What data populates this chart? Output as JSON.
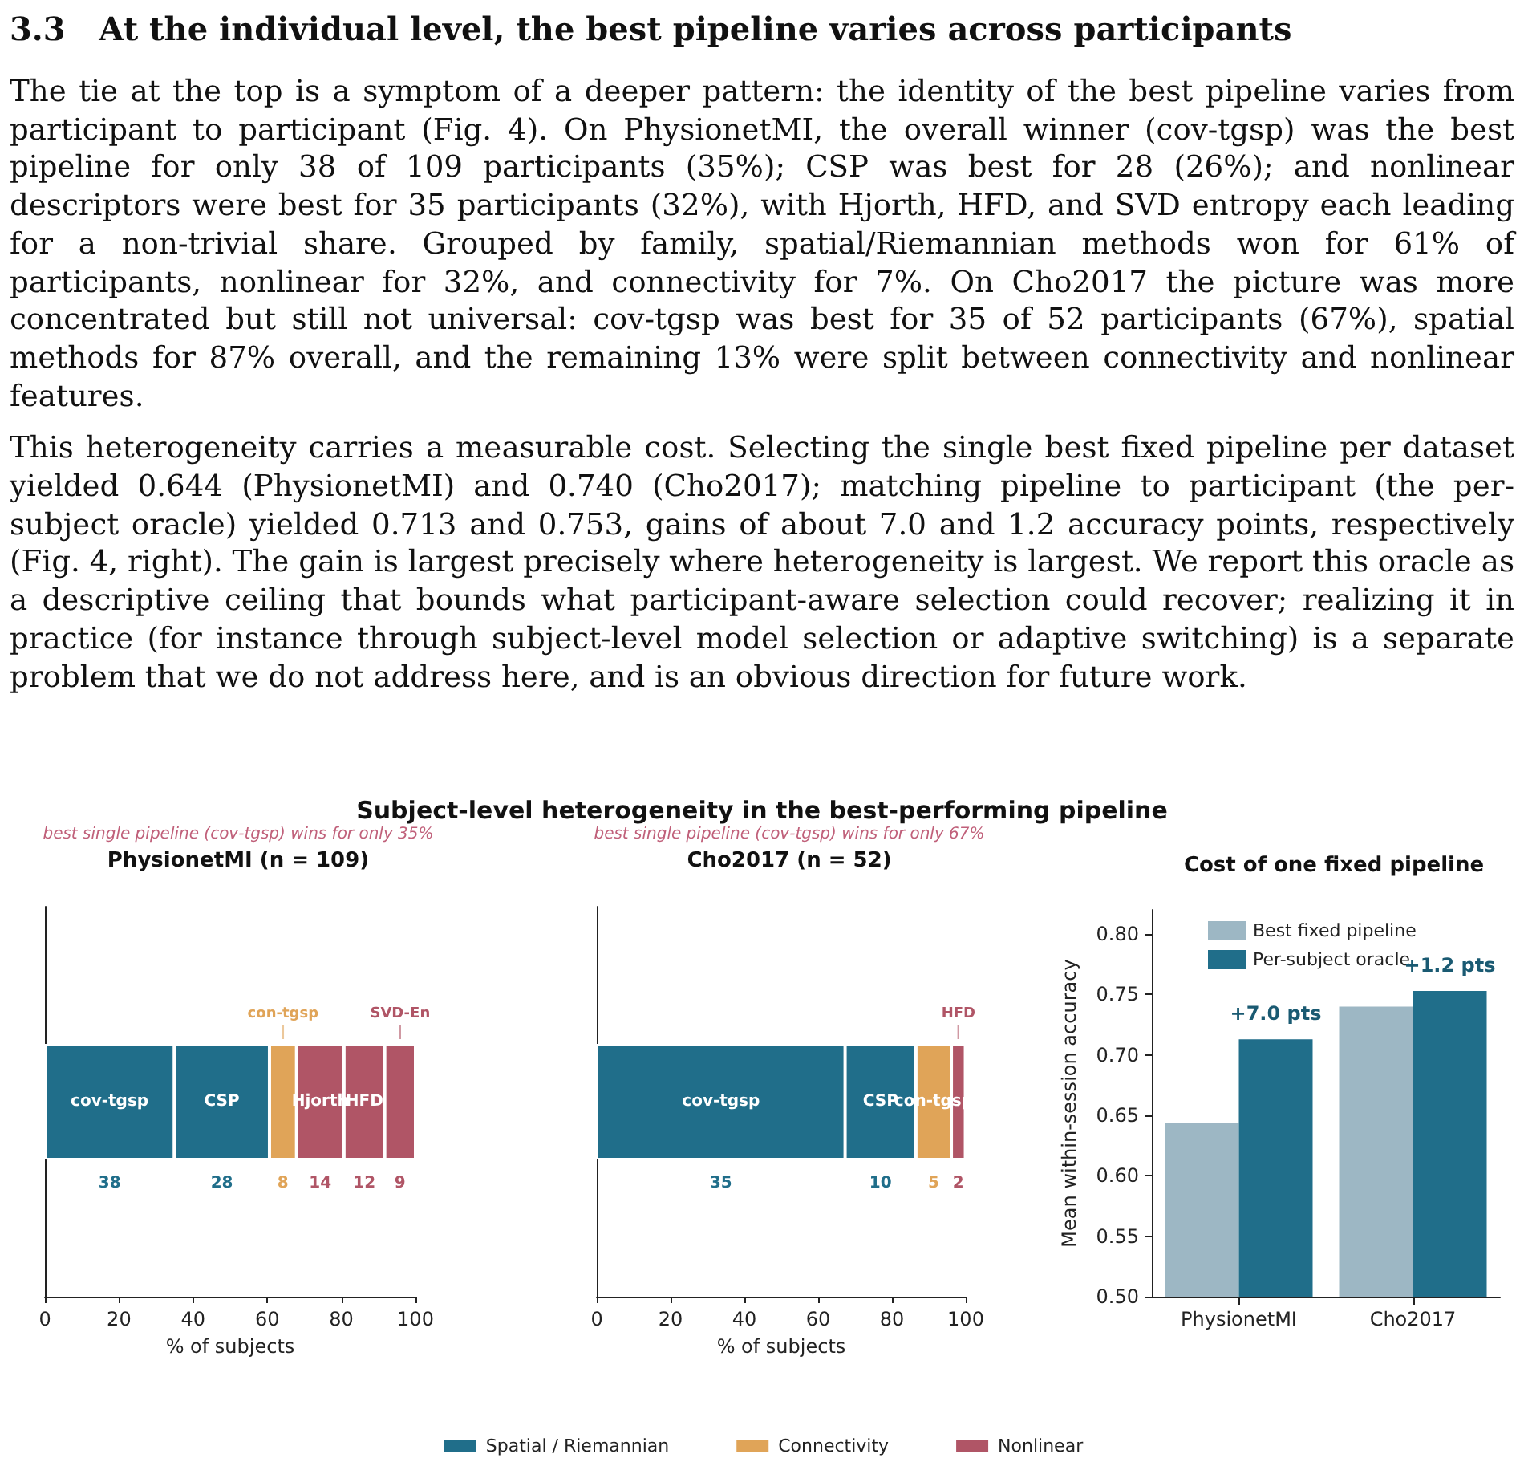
{
  "chart_data": [
    {
      "type": "other",
      "title": "3.3   At the individual level, the best pipeline varies across participants",
      "annotations": [
        "The tie at the top is a symptom of a deeper pattern: the identity of the best pipeline varies from participant to participant (Fig. 4). On PhysionetMI, the overall winner (cov-tgsp) was the best pipeline for only 38 of 109 participants (35%); CSP was best for 28 (26%); and nonlinear descriptors were best for 35 participants (32%), with Hjorth, HFD, and SVD entropy each leading for a non-trivial share. Grouped by family, spatial/Riemannian methods won for 61% of participants, nonlinear for 32%, and connectivity for 7%. On Cho2017 the picture was more concentrated but still not universal: cov-tgsp was best for 35 of 52 participants (67%), spatial methods for 87% overall, and the remaining 13% were split between connectivity and nonlinear features.",
        "This heterogeneity carries a measurable cost. Selecting the single best fixed pipeline per dataset yielded 0.644 (PhysionetMI) and 0.740 (Cho2017); matching pipeline to participant (the per-subject oracle) yielded 0.713 and 0.753, gains of about 7.0 and 1.2 accuracy points, respectively (Fig. 4, right). The gain is largest precisely where heterogeneity is largest. We report this oracle as a descriptive ceiling that bounds what participant-aware selection could recover; realizing it in practice (for instance through subject-level model selection or adaptive switching) is a separate problem that we do not address here, and is an obvious direction for future work.",
        "Subject-level heterogeneity in the best-performing pipeline"
      ]
    },
    {
      "type": "bar",
      "title": "PhysionetMI (n = 109)",
      "subtitle": "best single pipeline (cov-tgsp) wins for only 35%",
      "xlabel": "% of subjects",
      "orientation": "horizontal",
      "stacked": true,
      "categories": [
        null
      ],
      "xlim": [
        0,
        100
      ],
      "xticks": [
        0,
        20,
        40,
        60,
        80,
        100
      ],
      "tick_labels": "x",
      "series": [
        {
          "name": "cov-tgsp",
          "color": "#206e8a",
          "values": [
            34.9
          ]
        },
        {
          "name": "CSP",
          "color": "#206e8a",
          "values": [
            25.7
          ]
        },
        {
          "name": "con-tgsp",
          "color": "#e0a458",
          "values": [
            7.3
          ]
        },
        {
          "name": "Hjorth",
          "color": "#b05566",
          "values": [
            12.8
          ]
        },
        {
          "name": "HFD",
          "color": "#b05566",
          "values": [
            11.0
          ]
        },
        {
          "name": "SVD-En",
          "color": "#b05566",
          "values": [
            8.3
          ]
        }
      ],
      "annotations": [
        "38",
        "28",
        "8",
        "14",
        "12",
        "9"
      ]
    },
    {
      "type": "bar",
      "title": "Cho2017 (n = 52)",
      "subtitle": "best single pipeline (cov-tgsp) wins for only 67%",
      "xlabel": "% of subjects",
      "orientation": "horizontal",
      "stacked": true,
      "categories": [
        null
      ],
      "xlim": [
        0,
        100
      ],
      "xticks": [
        0,
        20,
        40,
        60,
        80,
        100
      ],
      "tick_labels": "x",
      "legend": "bottom",
      "series": [
        {
          "name": "cov-tgsp",
          "color": "#206e8a",
          "values": [
            67.3
          ]
        },
        {
          "name": "CSP",
          "color": "#206e8a",
          "values": [
            19.2
          ]
        },
        {
          "name": "con-tgsp",
          "color": "#e0a458",
          "values": [
            9.6
          ]
        },
        {
          "name": "HFD",
          "color": "#b05566",
          "values": [
            3.8
          ]
        },
        {
          "name": "Spatial / Riemannian",
          "color": "#206e8a",
          "values": [
            null
          ]
        },
        {
          "name": "Connectivity",
          "color": "#e0a458",
          "values": [
            null
          ]
        },
        {
          "name": "Nonlinear",
          "color": "#b05566",
          "values": [
            null
          ]
        }
      ],
      "annotations": [
        "35",
        "10",
        "5",
        "2"
      ]
    },
    {
      "type": "bar",
      "title": "Cost of one fixed pipeline",
      "ylabel": "Mean within-session accuracy",
      "categories": [
        "PhysionetMI",
        "Cho2017"
      ],
      "ylim": [
        0.5,
        0.82
      ],
      "yticks": [
        {
          "value": 0.5,
          "label": "0.50"
        },
        {
          "value": 0.55,
          "label": "0.55"
        },
        {
          "value": 0.6,
          "label": "0.60"
        },
        {
          "value": 0.65,
          "label": "0.65"
        },
        {
          "value": 0.7,
          "label": "0.70"
        },
        {
          "value": 0.75,
          "label": "0.75"
        },
        {
          "value": 0.8,
          "label": "0.80"
        }
      ],
      "legend": "top",
      "series": [
        {
          "name": "Best fixed pipeline",
          "color": "#9db7c4",
          "values": [
            0.644,
            0.74
          ]
        },
        {
          "name": "Per-subject oracle",
          "color": "#206e8a",
          "values": [
            0.713,
            0.753
          ]
        }
      ],
      "annotations": [
        "+7.0 pts",
        "+1.2 pts"
      ]
    }
  ]
}
